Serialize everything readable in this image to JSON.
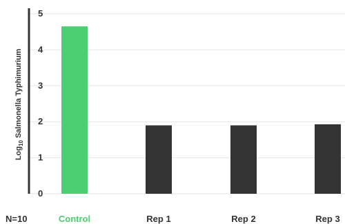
{
  "chart_data": {
    "type": "bar",
    "ylabel_prefix": "Log",
    "ylabel_subscript": "10",
    "ylabel_rest": " Salmonella Typhimurium",
    "n_label": "N=10",
    "categories": [
      "Control",
      "Rep 1",
      "Rep 2",
      "Rep 3"
    ],
    "values": [
      4.65,
      1.9,
      1.9,
      1.93
    ],
    "colors": [
      "#4cce72",
      "#333333",
      "#333333",
      "#333333"
    ],
    "category_label_colors": [
      "#4cce72",
      "#333333",
      "#333333",
      "#333333"
    ],
    "ylim": [
      0,
      5
    ],
    "yticks": [
      0,
      1,
      2,
      3,
      4,
      5
    ],
    "grid": true,
    "grid_color": "#e6e6e6",
    "axis_color": "#333333",
    "legend": "none"
  }
}
